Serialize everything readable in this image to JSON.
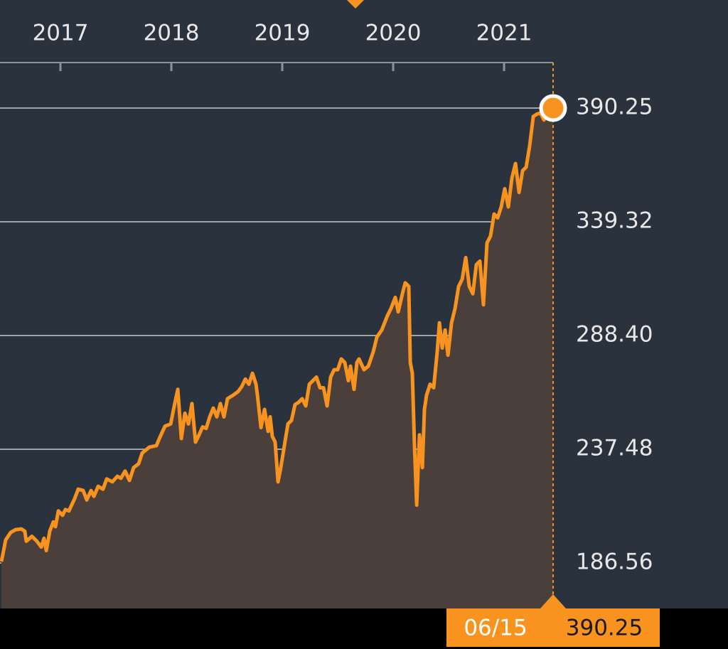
{
  "chart_data": {
    "type": "area",
    "x": [
      2016.468,
      2016.506,
      2016.551,
      2016.596,
      2016.647,
      2016.679,
      2016.692,
      2016.743,
      2016.788,
      2016.827,
      2016.852,
      2016.872,
      2016.904,
      2016.936,
      2016.955,
      2016.981,
      2017.019,
      2017.045,
      2017.077,
      2017.128,
      2017.16,
      2017.205,
      2017.237,
      2017.276,
      2017.301,
      2017.34,
      2017.384,
      2017.417,
      2017.468,
      2017.513,
      2017.545,
      2017.583,
      2017.622,
      2017.66,
      2017.705,
      2017.737,
      2017.801,
      2017.865,
      2017.897,
      2017.942,
      2017.994,
      2018.026,
      2018.058,
      2018.09,
      2018.122,
      2018.154,
      2018.186,
      2018.218,
      2018.25,
      2018.282,
      2018.314,
      2018.346,
      2018.378,
      2018.41,
      2018.442,
      2018.474,
      2018.506,
      2018.558,
      2018.603,
      2018.635,
      2018.667,
      2018.699,
      2018.731,
      2018.763,
      2018.776,
      2018.808,
      2018.84,
      2018.872,
      2018.891,
      2018.91,
      2018.936,
      2018.962,
      2018.987,
      2019.019,
      2019.051,
      2019.083,
      2019.115,
      2019.147,
      2019.179,
      2019.212,
      2019.244,
      2019.276,
      2019.308,
      2019.34,
      2019.372,
      2019.404,
      2019.436,
      2019.468,
      2019.5,
      2019.532,
      2019.564,
      2019.596,
      2019.615,
      2019.647,
      2019.673,
      2019.692,
      2019.737,
      2019.776,
      2019.821,
      2019.853,
      2019.897,
      2019.949,
      2019.981,
      2020.019,
      2020.045,
      2020.083,
      2020.109,
      2020.141,
      2020.154,
      2020.173,
      2020.192,
      2020.212,
      2020.237,
      2020.263,
      2020.282,
      2020.301,
      2020.333,
      2020.365,
      2020.397,
      2020.417,
      2020.442,
      2020.468,
      2020.494,
      2020.526,
      2020.558,
      2020.59,
      2020.622,
      2020.654,
      2020.686,
      2020.718,
      2020.75,
      2020.782,
      2020.814,
      2020.846,
      2020.878,
      2020.91,
      2020.942,
      2020.974,
      2021.006,
      2021.038,
      2021.071,
      2021.103,
      2021.135,
      2021.167,
      2021.199,
      2021.231,
      2021.263,
      2021.295,
      2021.327,
      2021.359,
      2021.391,
      2021.442
    ],
    "values": [
      187.2,
      196.9,
      200.2,
      201.5,
      201.8,
      200.8,
      196.3,
      198.5,
      196.3,
      193.7,
      197.6,
      192.1,
      200.8,
      205.0,
      202.8,
      209.9,
      207.9,
      210.5,
      209.9,
      215.4,
      219.6,
      219.0,
      214.8,
      219.0,
      216.4,
      220.9,
      219.6,
      224.2,
      222.9,
      225.4,
      224.5,
      227.7,
      223.5,
      229.3,
      231.0,
      235.8,
      238.4,
      239.1,
      242.9,
      247.8,
      248.8,
      256.9,
      264.3,
      242.3,
      253.6,
      248.8,
      257.9,
      240.7,
      243.9,
      247.5,
      246.8,
      252.0,
      255.9,
      252.0,
      257.9,
      252.0,
      260.1,
      261.7,
      263.4,
      265.6,
      268.9,
      266.6,
      271.5,
      266.6,
      261.7,
      247.2,
      255.3,
      245.5,
      252.0,
      243.3,
      240.7,
      222.9,
      229.3,
      239.1,
      248.8,
      250.4,
      257.5,
      258.5,
      260.1,
      256.9,
      266.6,
      268.2,
      269.8,
      265.0,
      265.0,
      256.9,
      269.8,
      273.1,
      273.1,
      277.9,
      276.3,
      268.2,
      274.7,
      264.3,
      276.3,
      277.9,
      273.1,
      274.7,
      281.2,
      287.7,
      290.9,
      297.4,
      300.6,
      305.5,
      299.0,
      307.1,
      312.0,
      310.4,
      276.3,
      271.5,
      239.1,
      212.5,
      243.9,
      229.3,
      255.3,
      261.7,
      266.6,
      265.0,
      281.2,
      294.1,
      282.8,
      290.9,
      279.6,
      294.1,
      300.6,
      310.4,
      313.6,
      323.3,
      310.4,
      307.1,
      320.1,
      321.7,
      302.2,
      329.8,
      333.0,
      342.8,
      341.1,
      346.0,
      354.1,
      346.0,
      359.0,
      365.4,
      352.5,
      362.2,
      363.8,
      373.5,
      386.5,
      387.5,
      388.1,
      384.9,
      388.1,
      390.25
    ],
    "color": "#f7931e",
    "area_color": "#4a3f3a",
    "xlim": [
      2016.455,
      2021.442
    ],
    "xticks": [
      2017,
      2018,
      2019,
      2020,
      2021
    ],
    "ylim": [
      166.19,
      410.62
    ],
    "yticks": [
      186.56,
      237.48,
      {
        "value": 288.4,
        "label": "288.40"
      },
      339.32,
      390.25
    ],
    "grid": true,
    "last_date": "06/15"
  }
}
